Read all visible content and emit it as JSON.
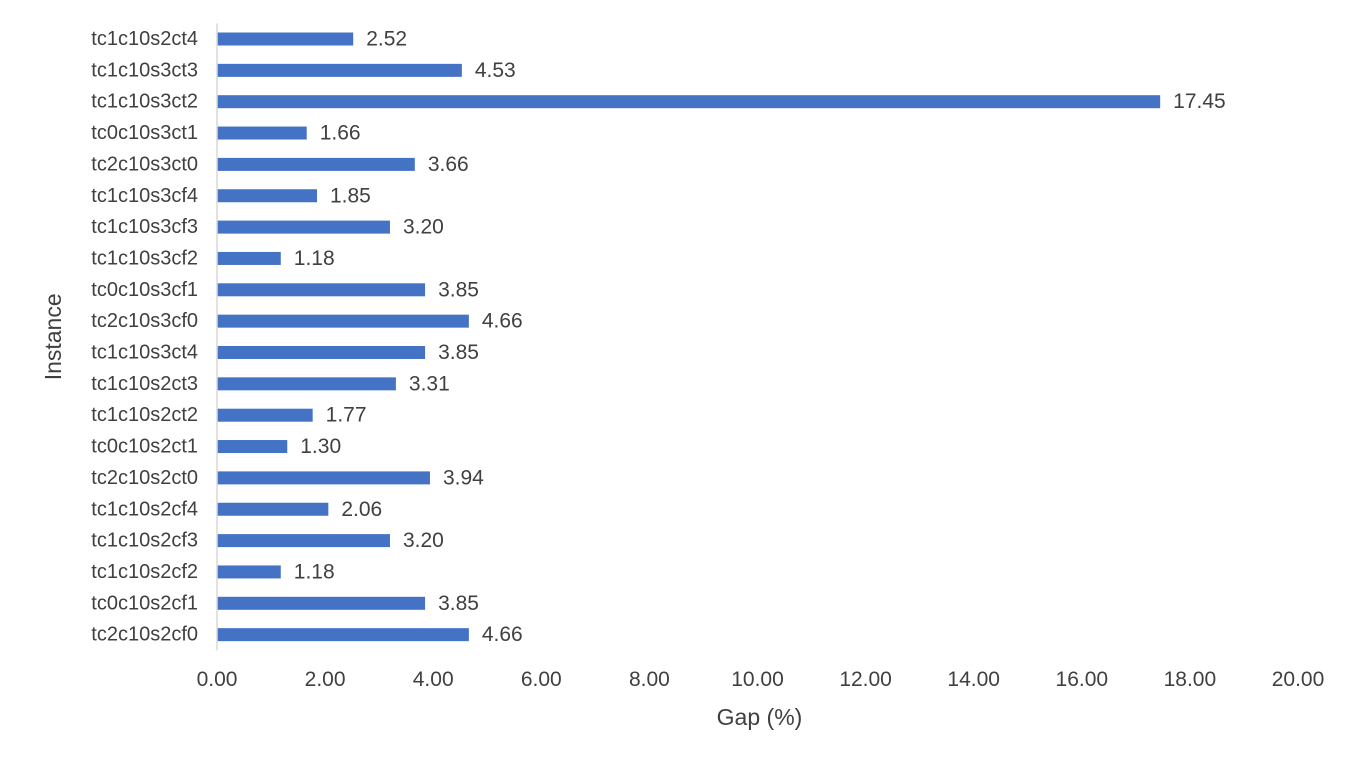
{
  "chart_data": {
    "type": "bar",
    "orientation": "horizontal",
    "categories": [
      "tc1c10s2ct4",
      "tc1c10s3ct3",
      "tc1c10s3ct2",
      "tc0c10s3ct1",
      "tc2c10s3ct0",
      "tc1c10s3cf4",
      "tc1c10s3cf3",
      "tc1c10s3cf2",
      "tc0c10s3cf1",
      "tc2c10s3cf0",
      "tc1c10s3ct4",
      "tc1c10s2ct3",
      "tc1c10s2ct2",
      "tc0c10s2ct1",
      "tc2c10s2ct0",
      "tc1c10s2cf4",
      "tc1c10s2cf3",
      "tc1c10s2cf2",
      "tc0c10s2cf1",
      "tc2c10s2cf0"
    ],
    "values": [
      2.52,
      4.53,
      17.45,
      1.66,
      3.66,
      1.85,
      3.2,
      1.18,
      3.85,
      4.66,
      3.85,
      3.31,
      1.77,
      1.3,
      3.94,
      2.06,
      3.2,
      1.18,
      3.85,
      4.66
    ],
    "data_labels": [
      "2.52",
      "4.53",
      "17.45",
      "1.66",
      "3.66",
      "1.85",
      "3.20",
      "1.18",
      "3.85",
      "4.66",
      "3.85",
      "3.31",
      "1.77",
      "1.30",
      "3.94",
      "2.06",
      "3.20",
      "1.18",
      "3.85",
      "4.66"
    ],
    "xlabel": "Gap (%)",
    "ylabel": "Instance",
    "xlim": [
      0,
      20
    ],
    "xticks": [
      "0.00",
      "2.00",
      "4.00",
      "6.00",
      "8.00",
      "10.00",
      "12.00",
      "14.00",
      "16.00",
      "18.00",
      "20.00"
    ],
    "grid": false,
    "legend": "none",
    "bar_color": "#4472c4"
  }
}
